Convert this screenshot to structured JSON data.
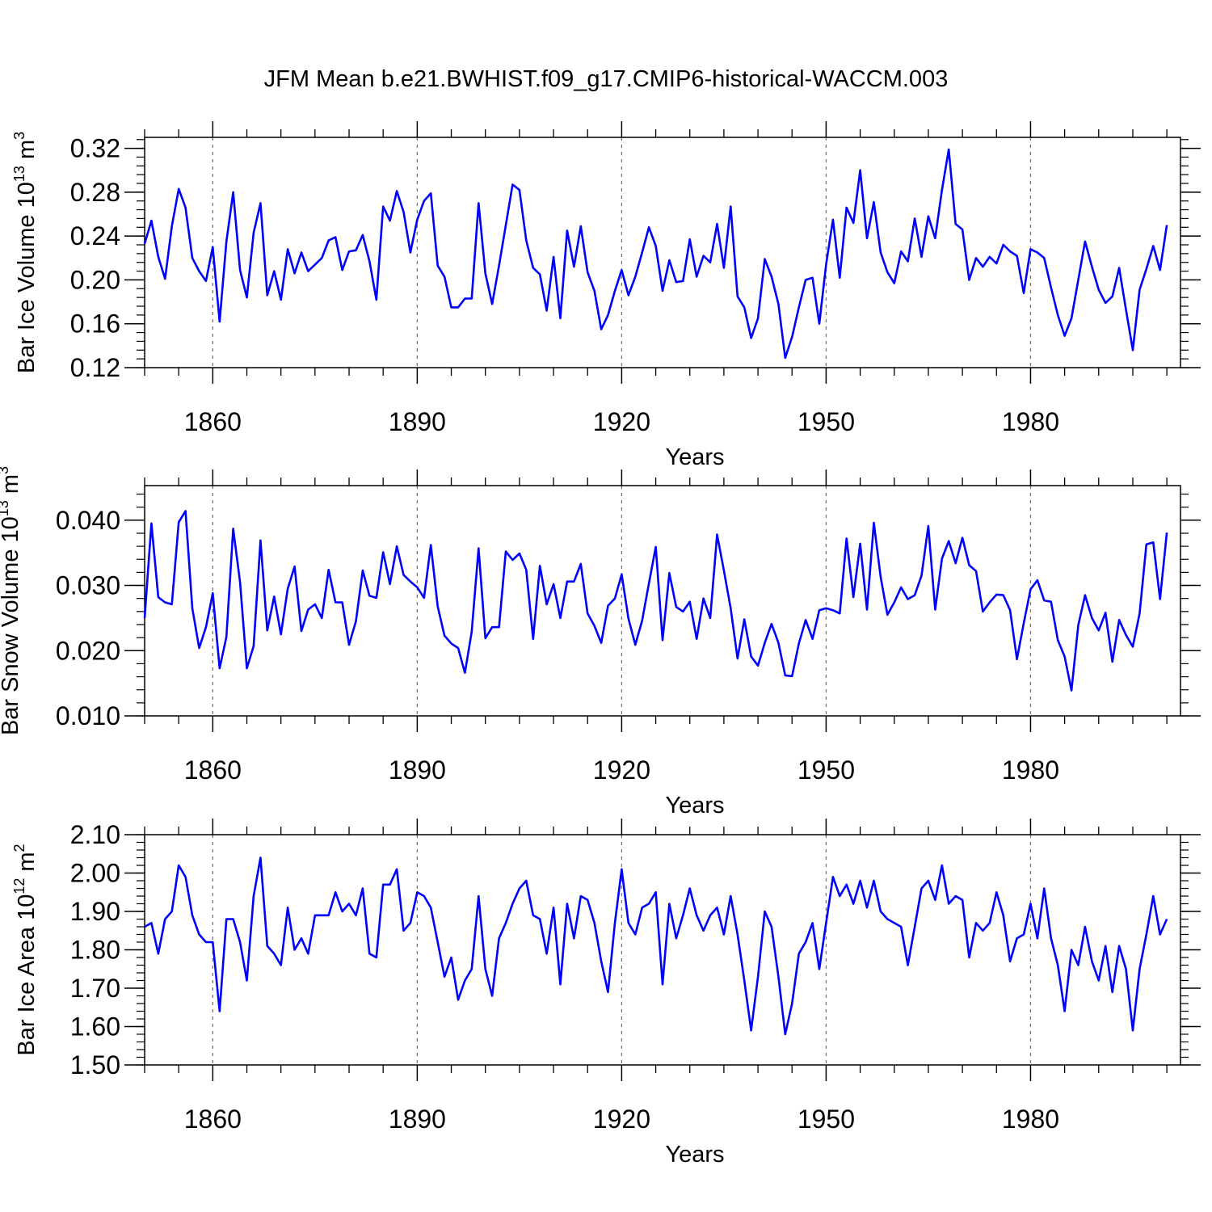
{
  "title": "JFM Mean b.e21.BWHIST.f09_g17.CMIP6-historical-WACCM.003",
  "line_color": "#0000ff",
  "chart_data": [
    {
      "type": "line",
      "title": "JFM Mean b.e21.BWHIST.f09_g17.CMIP6-historical-WACCM.003",
      "xlabel": "Years",
      "ylabel_text": "Bar Ice Volume 10",
      "ylabel_exp": "13",
      "ylabel_unit": " m",
      "ylabel_unit_exp": "3",
      "xlim": [
        1850,
        2002
      ],
      "ylim": [
        0.12,
        0.33
      ],
      "yticks": [
        0.12,
        0.16,
        0.2,
        0.24,
        0.28,
        0.32
      ],
      "ytick_labels": [
        "0.12",
        "0.16",
        "0.20",
        "0.24",
        "0.28",
        "0.32"
      ],
      "xticks": [
        1860,
        1890,
        1920,
        1950,
        1980
      ],
      "xtick_labels": [
        "1860",
        "1890",
        "1920",
        "1950",
        "1980"
      ],
      "x_start": 1850,
      "values": [
        0.233,
        0.254,
        0.221,
        0.201,
        0.249,
        0.283,
        0.266,
        0.22,
        0.208,
        0.199,
        0.23,
        0.162,
        0.235,
        0.28,
        0.209,
        0.184,
        0.243,
        0.27,
        0.186,
        0.208,
        0.182,
        0.228,
        0.206,
        0.225,
        0.208,
        0.214,
        0.22,
        0.236,
        0.239,
        0.209,
        0.226,
        0.227,
        0.241,
        0.217,
        0.182,
        0.267,
        0.254,
        0.281,
        0.262,
        0.225,
        0.255,
        0.272,
        0.279,
        0.213,
        0.203,
        0.175,
        0.175,
        0.183,
        0.183,
        0.27,
        0.206,
        0.178,
        0.213,
        0.25,
        0.287,
        0.282,
        0.236,
        0.211,
        0.205,
        0.172,
        0.221,
        0.165,
        0.245,
        0.212,
        0.249,
        0.207,
        0.19,
        0.155,
        0.168,
        0.19,
        0.209,
        0.186,
        0.203,
        0.225,
        0.248,
        0.231,
        0.19,
        0.218,
        0.198,
        0.199,
        0.237,
        0.203,
        0.222,
        0.216,
        0.251,
        0.211,
        0.267,
        0.185,
        0.175,
        0.147,
        0.165,
        0.219,
        0.203,
        0.178,
        0.129,
        0.148,
        0.175,
        0.2,
        0.202,
        0.16,
        0.214,
        0.255,
        0.202,
        0.266,
        0.252,
        0.3,
        0.238,
        0.271,
        0.225,
        0.207,
        0.197,
        0.226,
        0.217,
        0.256,
        0.221,
        0.258,
        0.238,
        0.282,
        0.319,
        0.251,
        0.246,
        0.2,
        0.22,
        0.212,
        0.221,
        0.215,
        0.232,
        0.226,
        0.222,
        0.188,
        0.228,
        0.225,
        0.22,
        0.193,
        0.168,
        0.149,
        0.165,
        0.2,
        0.235,
        0.212,
        0.191,
        0.179,
        0.185,
        0.211,
        0.173,
        0.136,
        0.191,
        0.21,
        0.231,
        0.209,
        0.25
      ]
    },
    {
      "type": "line",
      "xlabel": "Years",
      "ylabel_text": "Bar Snow Volume 10",
      "ylabel_exp": "13",
      "ylabel_unit": " m",
      "ylabel_unit_exp": "3",
      "xlim": [
        1850,
        2002
      ],
      "ylim": [
        0.01,
        0.0453
      ],
      "yticks": [
        0.01,
        0.02,
        0.03,
        0.04
      ],
      "ytick_labels": [
        "0.010",
        "0.020",
        "0.030",
        "0.040"
      ],
      "xticks": [
        1860,
        1890,
        1920,
        1950,
        1980
      ],
      "xtick_labels": [
        "1860",
        "1890",
        "1920",
        "1950",
        "1980"
      ],
      "x_start": 1850,
      "values": [
        0.025,
        0.0395,
        0.0282,
        0.0274,
        0.0271,
        0.0397,
        0.0414,
        0.0265,
        0.0204,
        0.0236,
        0.0288,
        0.0173,
        0.0221,
        0.0387,
        0.0305,
        0.0173,
        0.0207,
        0.0369,
        0.0231,
        0.0283,
        0.0225,
        0.0295,
        0.0329,
        0.023,
        0.0263,
        0.0271,
        0.025,
        0.0324,
        0.0274,
        0.0274,
        0.0209,
        0.0245,
        0.0323,
        0.0284,
        0.0281,
        0.0351,
        0.0302,
        0.036,
        0.0316,
        0.0306,
        0.0297,
        0.0281,
        0.0362,
        0.0268,
        0.0223,
        0.0211,
        0.0204,
        0.0166,
        0.0229,
        0.0357,
        0.0219,
        0.0236,
        0.0236,
        0.0352,
        0.0339,
        0.0349,
        0.0324,
        0.0218,
        0.033,
        0.0271,
        0.0302,
        0.025,
        0.0306,
        0.0306,
        0.0333,
        0.0257,
        0.0238,
        0.0212,
        0.0269,
        0.028,
        0.0317,
        0.0249,
        0.0209,
        0.0246,
        0.0303,
        0.0359,
        0.0216,
        0.0319,
        0.0267,
        0.026,
        0.0275,
        0.0218,
        0.028,
        0.025,
        0.0378,
        0.0323,
        0.0265,
        0.0188,
        0.0248,
        0.0191,
        0.0177,
        0.0212,
        0.0241,
        0.0212,
        0.0162,
        0.0161,
        0.0211,
        0.0247,
        0.0218,
        0.0262,
        0.0265,
        0.0262,
        0.0257,
        0.0372,
        0.0282,
        0.0364,
        0.0263,
        0.0396,
        0.0313,
        0.0255,
        0.0274,
        0.0297,
        0.0279,
        0.0285,
        0.0315,
        0.0391,
        0.0263,
        0.0341,
        0.0368,
        0.0334,
        0.0373,
        0.0331,
        0.0322,
        0.026,
        0.0274,
        0.0286,
        0.0285,
        0.0262,
        0.0187,
        0.0242,
        0.0294,
        0.0308,
        0.0277,
        0.0275,
        0.0216,
        0.0191,
        0.0139,
        0.0239,
        0.0285,
        0.025,
        0.0231,
        0.0258,
        0.0183,
        0.0247,
        0.0224,
        0.0206,
        0.0257,
        0.0363,
        0.0366,
        0.0279,
        0.0381
      ]
    },
    {
      "type": "line",
      "xlabel": "Years",
      "ylabel_text": "Bar Ice Area 10",
      "ylabel_exp": "12",
      "ylabel_unit": " m",
      "ylabel_unit_exp": "2",
      "xlim": [
        1850,
        2002
      ],
      "ylim": [
        1.5,
        2.1
      ],
      "yticks": [
        1.5,
        1.6,
        1.7,
        1.8,
        1.9,
        2.0,
        2.1
      ],
      "ytick_labels": [
        "1.50",
        "1.60",
        "1.70",
        "1.80",
        "1.90",
        "2.00",
        "2.10"
      ],
      "xticks": [
        1860,
        1890,
        1920,
        1950,
        1980
      ],
      "xtick_labels": [
        "1860",
        "1890",
        "1920",
        "1950",
        "1980"
      ],
      "x_start": 1850,
      "values": [
        1.86,
        1.87,
        1.79,
        1.88,
        1.9,
        2.02,
        1.99,
        1.89,
        1.84,
        1.82,
        1.82,
        1.64,
        1.88,
        1.88,
        1.82,
        1.72,
        1.94,
        2.04,
        1.81,
        1.79,
        1.76,
        1.91,
        1.8,
        1.83,
        1.79,
        1.89,
        1.89,
        1.89,
        1.95,
        1.9,
        1.92,
        1.89,
        1.96,
        1.79,
        1.78,
        1.97,
        1.97,
        2.01,
        1.85,
        1.87,
        1.95,
        1.94,
        1.91,
        1.82,
        1.73,
        1.78,
        1.67,
        1.72,
        1.75,
        1.94,
        1.75,
        1.68,
        1.83,
        1.87,
        1.92,
        1.96,
        1.98,
        1.89,
        1.88,
        1.79,
        1.91,
        1.71,
        1.92,
        1.83,
        1.94,
        1.93,
        1.87,
        1.77,
        1.69,
        1.87,
        2.01,
        1.87,
        1.84,
        1.91,
        1.92,
        1.95,
        1.71,
        1.92,
        1.83,
        1.89,
        1.96,
        1.89,
        1.85,
        1.89,
        1.91,
        1.84,
        1.94,
        1.84,
        1.72,
        1.59,
        1.73,
        1.9,
        1.86,
        1.73,
        1.58,
        1.66,
        1.79,
        1.82,
        1.87,
        1.75,
        1.87,
        1.99,
        1.94,
        1.97,
        1.92,
        1.98,
        1.91,
        1.98,
        1.9,
        1.88,
        1.87,
        1.86,
        1.76,
        1.86,
        1.96,
        1.98,
        1.93,
        2.02,
        1.92,
        1.94,
        1.93,
        1.78,
        1.87,
        1.85,
        1.87,
        1.95,
        1.89,
        1.77,
        1.83,
        1.84,
        1.92,
        1.83,
        1.96,
        1.83,
        1.76,
        1.64,
        1.8,
        1.76,
        1.86,
        1.77,
        1.72,
        1.81,
        1.69,
        1.81,
        1.75,
        1.59,
        1.75,
        1.84,
        1.94,
        1.84,
        1.88
      ]
    }
  ]
}
